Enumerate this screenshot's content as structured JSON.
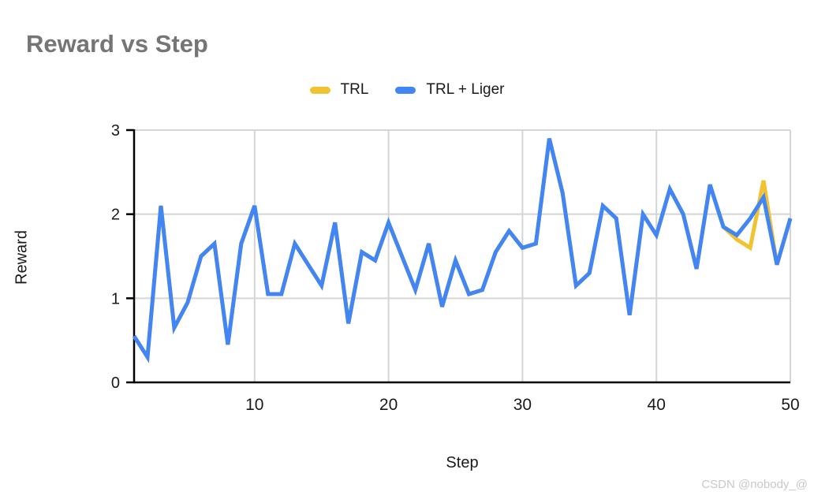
{
  "title": "Reward vs Step",
  "watermark": "CSDN @nobody_@",
  "legend": {
    "items": [
      {
        "label": "TRL",
        "color": "#F1C232"
      },
      {
        "label": "TRL + Liger",
        "color": "#4285F4"
      }
    ]
  },
  "colors": {
    "trl": "#F1C232",
    "trl_liger": "#4285F4",
    "grid": "#d5d5d5",
    "axis": "#000000",
    "title_gray": "#757575",
    "watermark_gray": "#c9c9c9"
  },
  "chart_data": {
    "type": "line",
    "title": "Reward vs Step",
    "xlabel": "Step",
    "ylabel": "Reward",
    "xlim": [
      1,
      50
    ],
    "ylim": [
      0,
      3
    ],
    "x_ticks": [
      10,
      20,
      30,
      40,
      50
    ],
    "y_ticks": [
      0,
      1,
      2,
      3
    ],
    "grid": true,
    "legend_position": "top",
    "x": [
      1,
      2,
      3,
      4,
      5,
      6,
      7,
      8,
      9,
      10,
      11,
      12,
      13,
      14,
      15,
      16,
      17,
      18,
      19,
      20,
      21,
      22,
      23,
      24,
      25,
      26,
      27,
      28,
      29,
      30,
      31,
      32,
      33,
      34,
      35,
      36,
      37,
      38,
      39,
      40,
      41,
      42,
      43,
      44,
      45,
      46,
      47,
      48,
      49,
      50
    ],
    "series": [
      {
        "name": "TRL",
        "color": "#F1C232",
        "values": [
          0.55,
          0.3,
          2.1,
          0.65,
          0.95,
          1.5,
          1.65,
          0.45,
          1.65,
          2.1,
          1.05,
          1.05,
          1.65,
          1.4,
          1.15,
          1.9,
          0.7,
          1.55,
          1.45,
          1.9,
          1.5,
          1.1,
          1.65,
          0.9,
          1.45,
          1.05,
          1.1,
          1.55,
          1.8,
          1.6,
          1.65,
          2.9,
          2.25,
          1.15,
          1.3,
          2.1,
          1.95,
          0.8,
          2.0,
          1.75,
          2.3,
          2.0,
          1.35,
          2.35,
          1.85,
          1.7,
          1.6,
          2.4,
          1.4,
          1.95
        ]
      },
      {
        "name": "TRL + Liger",
        "color": "#4285F4",
        "values": [
          0.55,
          0.3,
          2.1,
          0.65,
          0.95,
          1.5,
          1.65,
          0.45,
          1.65,
          2.1,
          1.05,
          1.05,
          1.65,
          1.4,
          1.15,
          1.9,
          0.7,
          1.55,
          1.45,
          1.9,
          1.5,
          1.1,
          1.65,
          0.9,
          1.45,
          1.05,
          1.1,
          1.55,
          1.8,
          1.6,
          1.65,
          2.9,
          2.25,
          1.15,
          1.3,
          2.1,
          1.95,
          0.8,
          2.0,
          1.75,
          2.3,
          2.0,
          1.35,
          2.35,
          1.85,
          1.75,
          1.95,
          2.2,
          1.4,
          1.95
        ]
      }
    ]
  }
}
